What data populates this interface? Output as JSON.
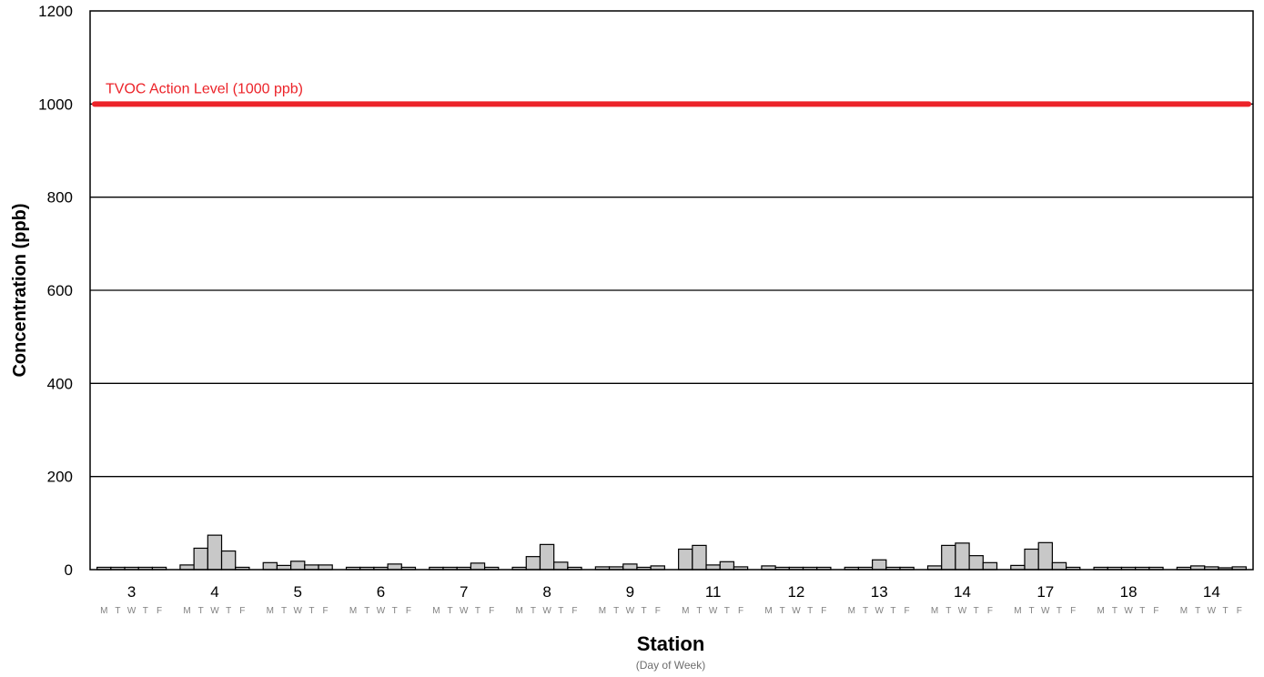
{
  "chart_data": {
    "type": "bar",
    "xlabel": "Station",
    "xlabel_sub": "(Day of Week)",
    "ylabel": "Concentration (ppb)",
    "ylim": [
      0,
      1200
    ],
    "yticks": [
      0,
      200,
      400,
      600,
      800,
      1000,
      1200
    ],
    "grid": true,
    "day_labels": [
      "M",
      "T",
      "W",
      "T",
      "F"
    ],
    "categories": [
      "3",
      "4",
      "5",
      "6",
      "7",
      "8",
      "9",
      "11",
      "12",
      "13",
      "14",
      "17",
      "18",
      "14"
    ],
    "values": [
      [
        5,
        5,
        5,
        5,
        5
      ],
      [
        10,
        46,
        74,
        40,
        5
      ],
      [
        15,
        9,
        18,
        10,
        10
      ],
      [
        5,
        5,
        5,
        12,
        5
      ],
      [
        5,
        5,
        5,
        14,
        5
      ],
      [
        5,
        28,
        54,
        16,
        5
      ],
      [
        6,
        6,
        12,
        5,
        8
      ],
      [
        44,
        52,
        10,
        17,
        6
      ],
      [
        8,
        5,
        5,
        5,
        5
      ],
      [
        5,
        5,
        21,
        5,
        5
      ],
      [
        8,
        52,
        57,
        30,
        15
      ],
      [
        9,
        44,
        58,
        15,
        5
      ],
      [
        5,
        5,
        5,
        5,
        5
      ],
      [
        5,
        8,
        6,
        4,
        6
      ]
    ],
    "reference_line": {
      "value": 1000,
      "label": "TVOC Action Level (1000 ppb)",
      "color": "#ec2329"
    },
    "bar_color": "#c8c8c8",
    "bar_stroke": "#000000"
  }
}
